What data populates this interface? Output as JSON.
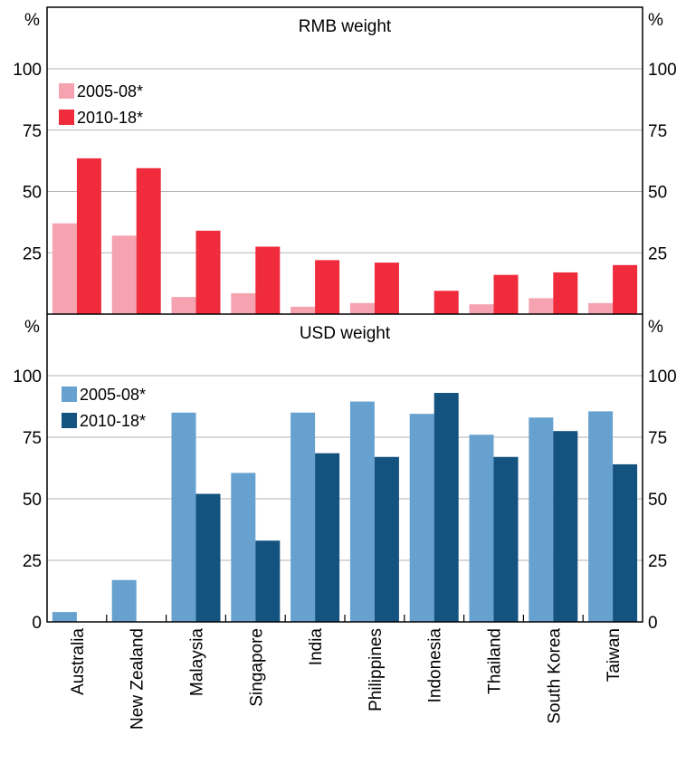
{
  "chart_data": [
    {
      "type": "bar",
      "title": "RMB weight",
      "unit_left": "%",
      "unit_right": "%",
      "ylim": [
        0,
        100
      ],
      "yticks": [
        "25",
        "50",
        "75",
        "100"
      ],
      "categories": [
        "Australia",
        "New Zealand",
        "Malaysia",
        "Singapore",
        "India",
        "Philippines",
        "Indonesia",
        "Thailand",
        "South Korea",
        "Taiwan"
      ],
      "series": [
        {
          "name": "2005-08*",
          "color": "#f5a3b0",
          "values": [
            37,
            32,
            7,
            8.5,
            3,
            4.5,
            0,
            4,
            6.5,
            4.5
          ]
        },
        {
          "name": "2010-18*",
          "color": "#ef2b3c",
          "values": [
            63.5,
            59.5,
            34,
            27.5,
            22,
            21,
            9.5,
            16,
            17,
            20
          ]
        }
      ],
      "legend_position": "top-left",
      "grid": true
    },
    {
      "type": "bar",
      "title": "USD weight",
      "unit_left": "%",
      "unit_right": "%",
      "ylim": [
        0,
        100
      ],
      "yticks": [
        "0",
        "25",
        "50",
        "75",
        "100"
      ],
      "categories": [
        "Australia",
        "New Zealand",
        "Malaysia",
        "Singapore",
        "India",
        "Philippines",
        "Indonesia",
        "Thailand",
        "South Korea",
        "Taiwan"
      ],
      "series": [
        {
          "name": "2005-08*",
          "color": "#67a1cf",
          "values": [
            4,
            17,
            85,
            60.5,
            85,
            89.5,
            84.5,
            76,
            83,
            85.5
          ]
        },
        {
          "name": "2010-18*",
          "color": "#14527f",
          "values": [
            0,
            0,
            52,
            33,
            68.5,
            67,
            93,
            67,
            77.5,
            64
          ]
        }
      ],
      "legend_position": "top-left",
      "grid": true
    }
  ]
}
